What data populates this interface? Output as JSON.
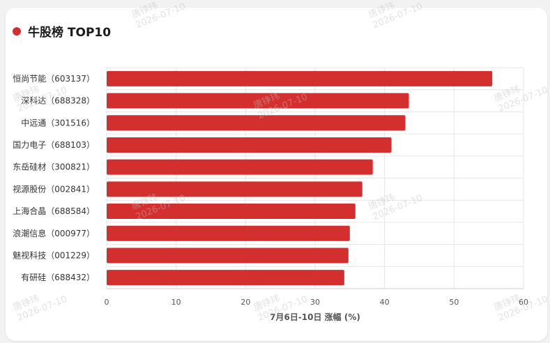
{
  "title": "牛股榜 TOP10",
  "watermark": {
    "name": "唐铮玮",
    "date": "2026-07-10"
  },
  "colors": {
    "bar": "#d32f2f",
    "accent": "#d32f2f",
    "grid": "#e6e6e6"
  },
  "chart_data": {
    "type": "bar",
    "orientation": "horizontal",
    "categories": [
      "恒尚节能（603137）",
      "深科达（688328）",
      "中远通（301516）",
      "国力电子（688103）",
      "东岳硅材（300821）",
      "视源股份（002841）",
      "上海合晶（688584）",
      "浪潮信息（000977）",
      "魅视科技（001229）",
      "有研硅（688432）"
    ],
    "values": [
      55.5,
      43.5,
      43.0,
      41.0,
      38.3,
      36.8,
      35.8,
      35.0,
      34.8,
      34.2
    ],
    "xlabel": "7月6日-10日 涨幅 (%)",
    "xlim": [
      0,
      60
    ],
    "xticks": [
      "0",
      "10",
      "20",
      "30",
      "40",
      "50",
      "60"
    ],
    "grid": true,
    "legend": "none"
  }
}
